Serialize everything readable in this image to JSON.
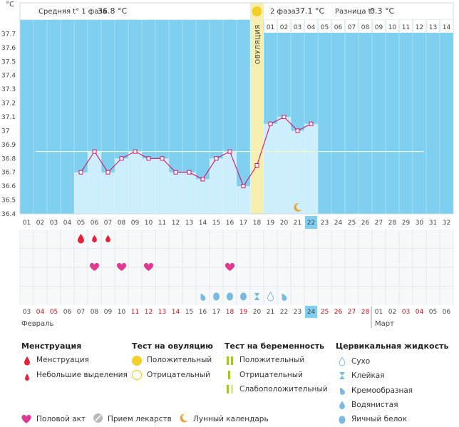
{
  "header": {
    "unit": "°C",
    "phase1_label": "Средняя t° 1 фаза",
    "phase1_value": "36.8 °C",
    "phase2_label": "2 фаза",
    "phase2_value": "37.1 °C",
    "diff_label": "Разница t°",
    "diff_value": "0.3 °C"
  },
  "ovulation_label": "ОВУЛЯЦИЯ",
  "chart_data": {
    "type": "bar",
    "ylim": [
      36.4,
      37.8
    ],
    "y_ticks": [
      "37.7",
      "37.6",
      "37.5",
      "37.4",
      "37.3",
      "37.2",
      "37.1",
      "37",
      "36.9",
      "36.8",
      "36.7",
      "36.6",
      "36.5",
      "36.4"
    ],
    "cycle_days": [
      "01",
      "02",
      "03",
      "04",
      "05",
      "06",
      "07",
      "08",
      "09",
      "10",
      "11",
      "12",
      "13",
      "14",
      "15",
      "16",
      "17",
      "18",
      "19",
      "20",
      "21",
      "22",
      "23",
      "24",
      "25",
      "26",
      "27",
      "28",
      "29",
      "30",
      "31",
      "32"
    ],
    "phase2_day_labels": [
      "01",
      "02",
      "03",
      "04",
      "05",
      "06",
      "07",
      "08",
      "09",
      "10",
      "11",
      "12",
      "13",
      "14"
    ],
    "temperatures": [
      null,
      null,
      null,
      null,
      36.7,
      36.85,
      36.7,
      36.8,
      36.85,
      36.8,
      36.8,
      36.7,
      36.7,
      36.65,
      36.8,
      36.85,
      36.6,
      36.75,
      37.05,
      37.1,
      37.0,
      37.05
    ],
    "cover_line": 36.85,
    "ovulation_day": 18,
    "current_day": 22,
    "dates": [
      "03",
      "04",
      "05",
      "06",
      "07",
      "08",
      "09",
      "10",
      "11",
      "12",
      "13",
      "14",
      "15",
      "16",
      "17",
      "18",
      "19",
      "20",
      "21",
      "22",
      "23",
      "24",
      "25",
      "26",
      "27",
      "28",
      "01",
      "02",
      "03",
      "04",
      "05",
      "06"
    ],
    "weekend_dates": [
      1,
      2,
      8,
      9,
      10,
      11,
      15,
      16,
      22,
      23,
      24,
      25,
      28,
      29
    ],
    "current_date_index": 21,
    "month_labels": [
      "Февраль",
      "Март"
    ],
    "month_start_index": 26
  },
  "markers": {
    "menstruation": [
      {
        "day": 5,
        "size": "large"
      },
      {
        "day": 6,
        "size": "small"
      },
      {
        "day": 7,
        "size": "small"
      }
    ],
    "intercourse": [
      6,
      8,
      10,
      16
    ],
    "fluid": [
      {
        "day": 14,
        "kind": "creamy"
      },
      {
        "day": 15,
        "kind": "egg-white"
      },
      {
        "day": 16,
        "kind": "egg-white"
      },
      {
        "day": 17,
        "kind": "egg-white"
      },
      {
        "day": 18,
        "kind": "sticky"
      },
      {
        "day": 19,
        "kind": "dry"
      },
      {
        "day": 20,
        "kind": "creamy"
      }
    ],
    "moon_day": 21
  },
  "legend": {
    "menstruation_title": "Менструация",
    "menstruation_items": [
      "Менструация",
      "Небольшие выделения"
    ],
    "ovulation_test_title": "Тест на овуляцию",
    "ovulation_test_items": [
      "Положительный",
      "Отрицательный"
    ],
    "pregnancy_test_title": "Тест на беременность",
    "pregnancy_test_items": [
      "Положительный",
      "Отрицательный",
      "Слабоположительный"
    ],
    "cervical_title": "Цервикальная жидкость",
    "cervical_items": [
      "Сухо",
      "Клейкая",
      "Кремообразная",
      "Водянистая",
      "Яичный белок"
    ],
    "bottom_items": [
      "Половой акт",
      "Прием лекарств",
      "Лунный календарь"
    ]
  },
  "colors": {
    "plot_bg": "#7ecff0",
    "bar": "#cdeefc",
    "line": "#d4156a",
    "ovulation": "#f7efb0",
    "ovulation_dot": "#f4cf2a",
    "heart": "#e2388f",
    "drop": "#e8203a",
    "fluid": "#7ab9e3",
    "highlight": "#7ecff0",
    "weekend": "#d0101a"
  }
}
